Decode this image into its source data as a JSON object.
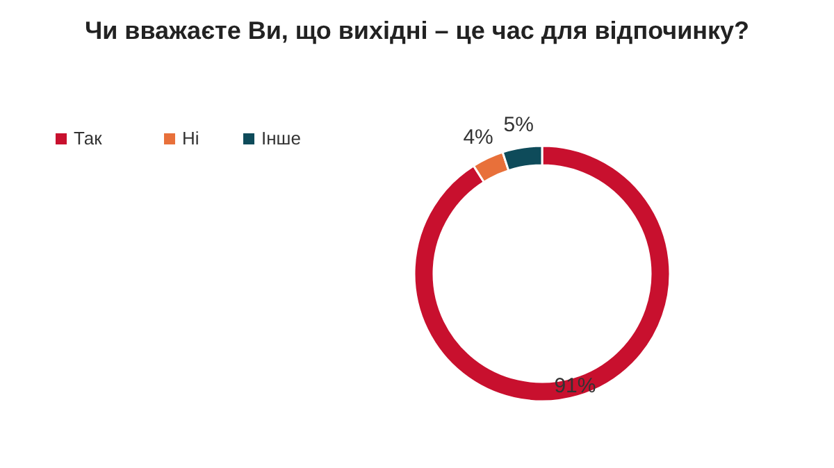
{
  "chart_data": {
    "type": "donut",
    "title": "Чи вважаєте Ви, що вихідні – це час для відпочинку?",
    "categories": [
      "Так",
      "Ні",
      "Інше"
    ],
    "values": [
      91,
      4,
      5
    ],
    "colors": [
      "#c8102e",
      "#e8703a",
      "#0e4b5a"
    ],
    "value_labels": [
      "91%",
      "4%",
      "5%"
    ],
    "legend": "top left"
  }
}
